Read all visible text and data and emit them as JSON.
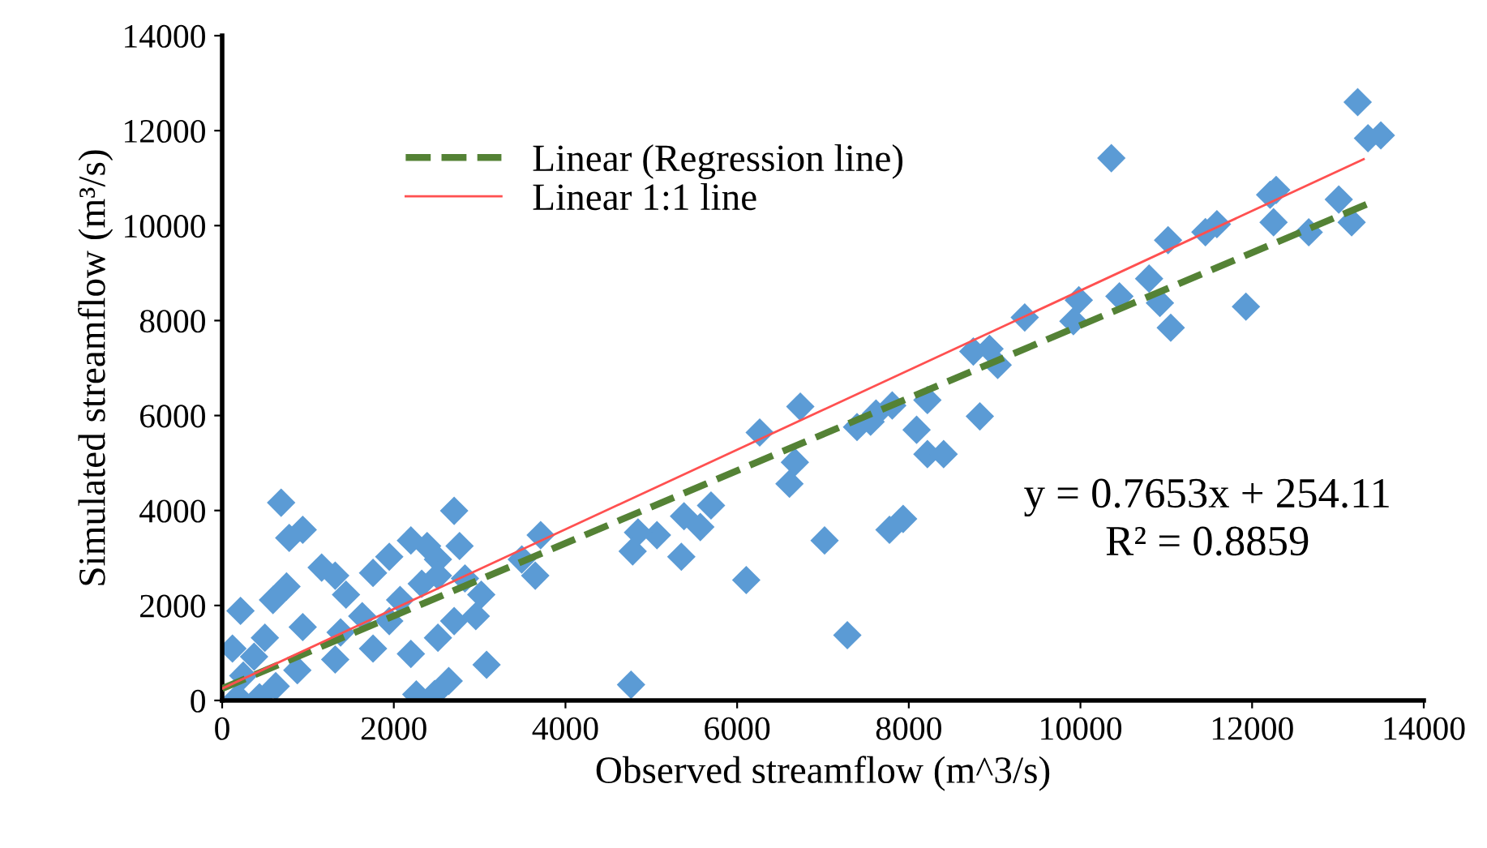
{
  "chart_data": {
    "type": "scatter",
    "xlabel": "Observed streamflow (m^3/s)",
    "ylabel": "Simulated streamflow (m³/s)",
    "xlim": [
      0,
      14000
    ],
    "ylim": [
      0,
      14000
    ],
    "xticks": [
      0,
      2000,
      4000,
      6000,
      8000,
      10000,
      12000,
      14000
    ],
    "yticks": [
      0,
      2000,
      4000,
      6000,
      8000,
      10000,
      12000,
      14000
    ],
    "grid": false,
    "legend": "top left",
    "marker": "diamond",
    "series": [
      {
        "color": "#5b9bd5",
        "x": [
          13230,
          13350,
          13500,
          10360,
          12210,
          12280,
          12250,
          13010,
          13160,
          12660,
          11590,
          11456,
          11021,
          11928,
          10800,
          10926,
          11052,
          10454,
          9981,
          9918,
          9351,
          8941,
          9036,
          8752,
          8828,
          8217,
          8091,
          8217,
          8406,
          7807,
          7618,
          7397,
          7555,
          6736,
          6263,
          6673,
          6610,
          7934,
          7775,
          7019,
          6106,
          7284,
          4764,
          5696,
          5571,
          5381,
          5350,
          5066,
          4845,
          4783,
          3711,
          3648,
          3491,
          687,
          939,
          781,
          2703,
          214,
          1159,
          1317,
          750,
          592,
          1443,
          1758,
          1947,
          2199,
          2388,
          2514,
          2766,
          2829,
          3019,
          2955,
          3081,
          2640,
          2262,
          2476,
          120,
          246,
          183,
          498,
          939,
          1380,
          1632,
          2073,
          2325,
          2514,
          2199,
          1317,
          876,
          1758,
          1947,
          2703,
          435,
          624,
          372,
          2514
        ],
        "values": [
          12600,
          11840,
          11900,
          11420,
          10650,
          10750,
          10070,
          10550,
          10070,
          9860,
          10030,
          9863,
          9693,
          8294,
          8884,
          8372,
          7850,
          8509,
          8430,
          7986,
          8065,
          7406,
          7065,
          7348,
          5983,
          6325,
          5700,
          5188,
          5188,
          6212,
          6041,
          5757,
          5870,
          6188,
          5642,
          5017,
          4563,
          3823,
          3594,
          3369,
          2536,
          1375,
          331,
          4106,
          3652,
          3880,
          3027,
          3481,
          3539,
          3140,
          3481,
          2628,
          2969,
          4164,
          3594,
          3423,
          3993,
          1887,
          2799,
          2628,
          2400,
          2116,
          2229,
          2686,
          3027,
          3369,
          3252,
          2969,
          3252,
          2570,
          2229,
          1775,
          751,
          410,
          126,
          137,
          1092,
          522,
          68,
          1321,
          1546,
          1433,
          1775,
          2116,
          2457,
          1321,
          980,
          863,
          638,
          1092,
          1672,
          1672,
          68,
          300,
          922,
          2628
        ]
      },
      {
        "name": "Linear (Regression line)",
        "type": "line",
        "color": "#548235",
        "line_style": "dashed",
        "marker": "none",
        "x": [
          0,
          13400
        ],
        "values": [
          250,
          10500
        ]
      },
      {
        "name": "Linear 1:1 line",
        "type": "line",
        "color": "#ff5050",
        "line_style": "solid",
        "marker": "none",
        "x": [
          0,
          13300
        ],
        "values": [
          250,
          11400
        ]
      }
    ],
    "annotations": [
      "y = 0.7653x + 254.11\nR² = 0.8859"
    ]
  }
}
